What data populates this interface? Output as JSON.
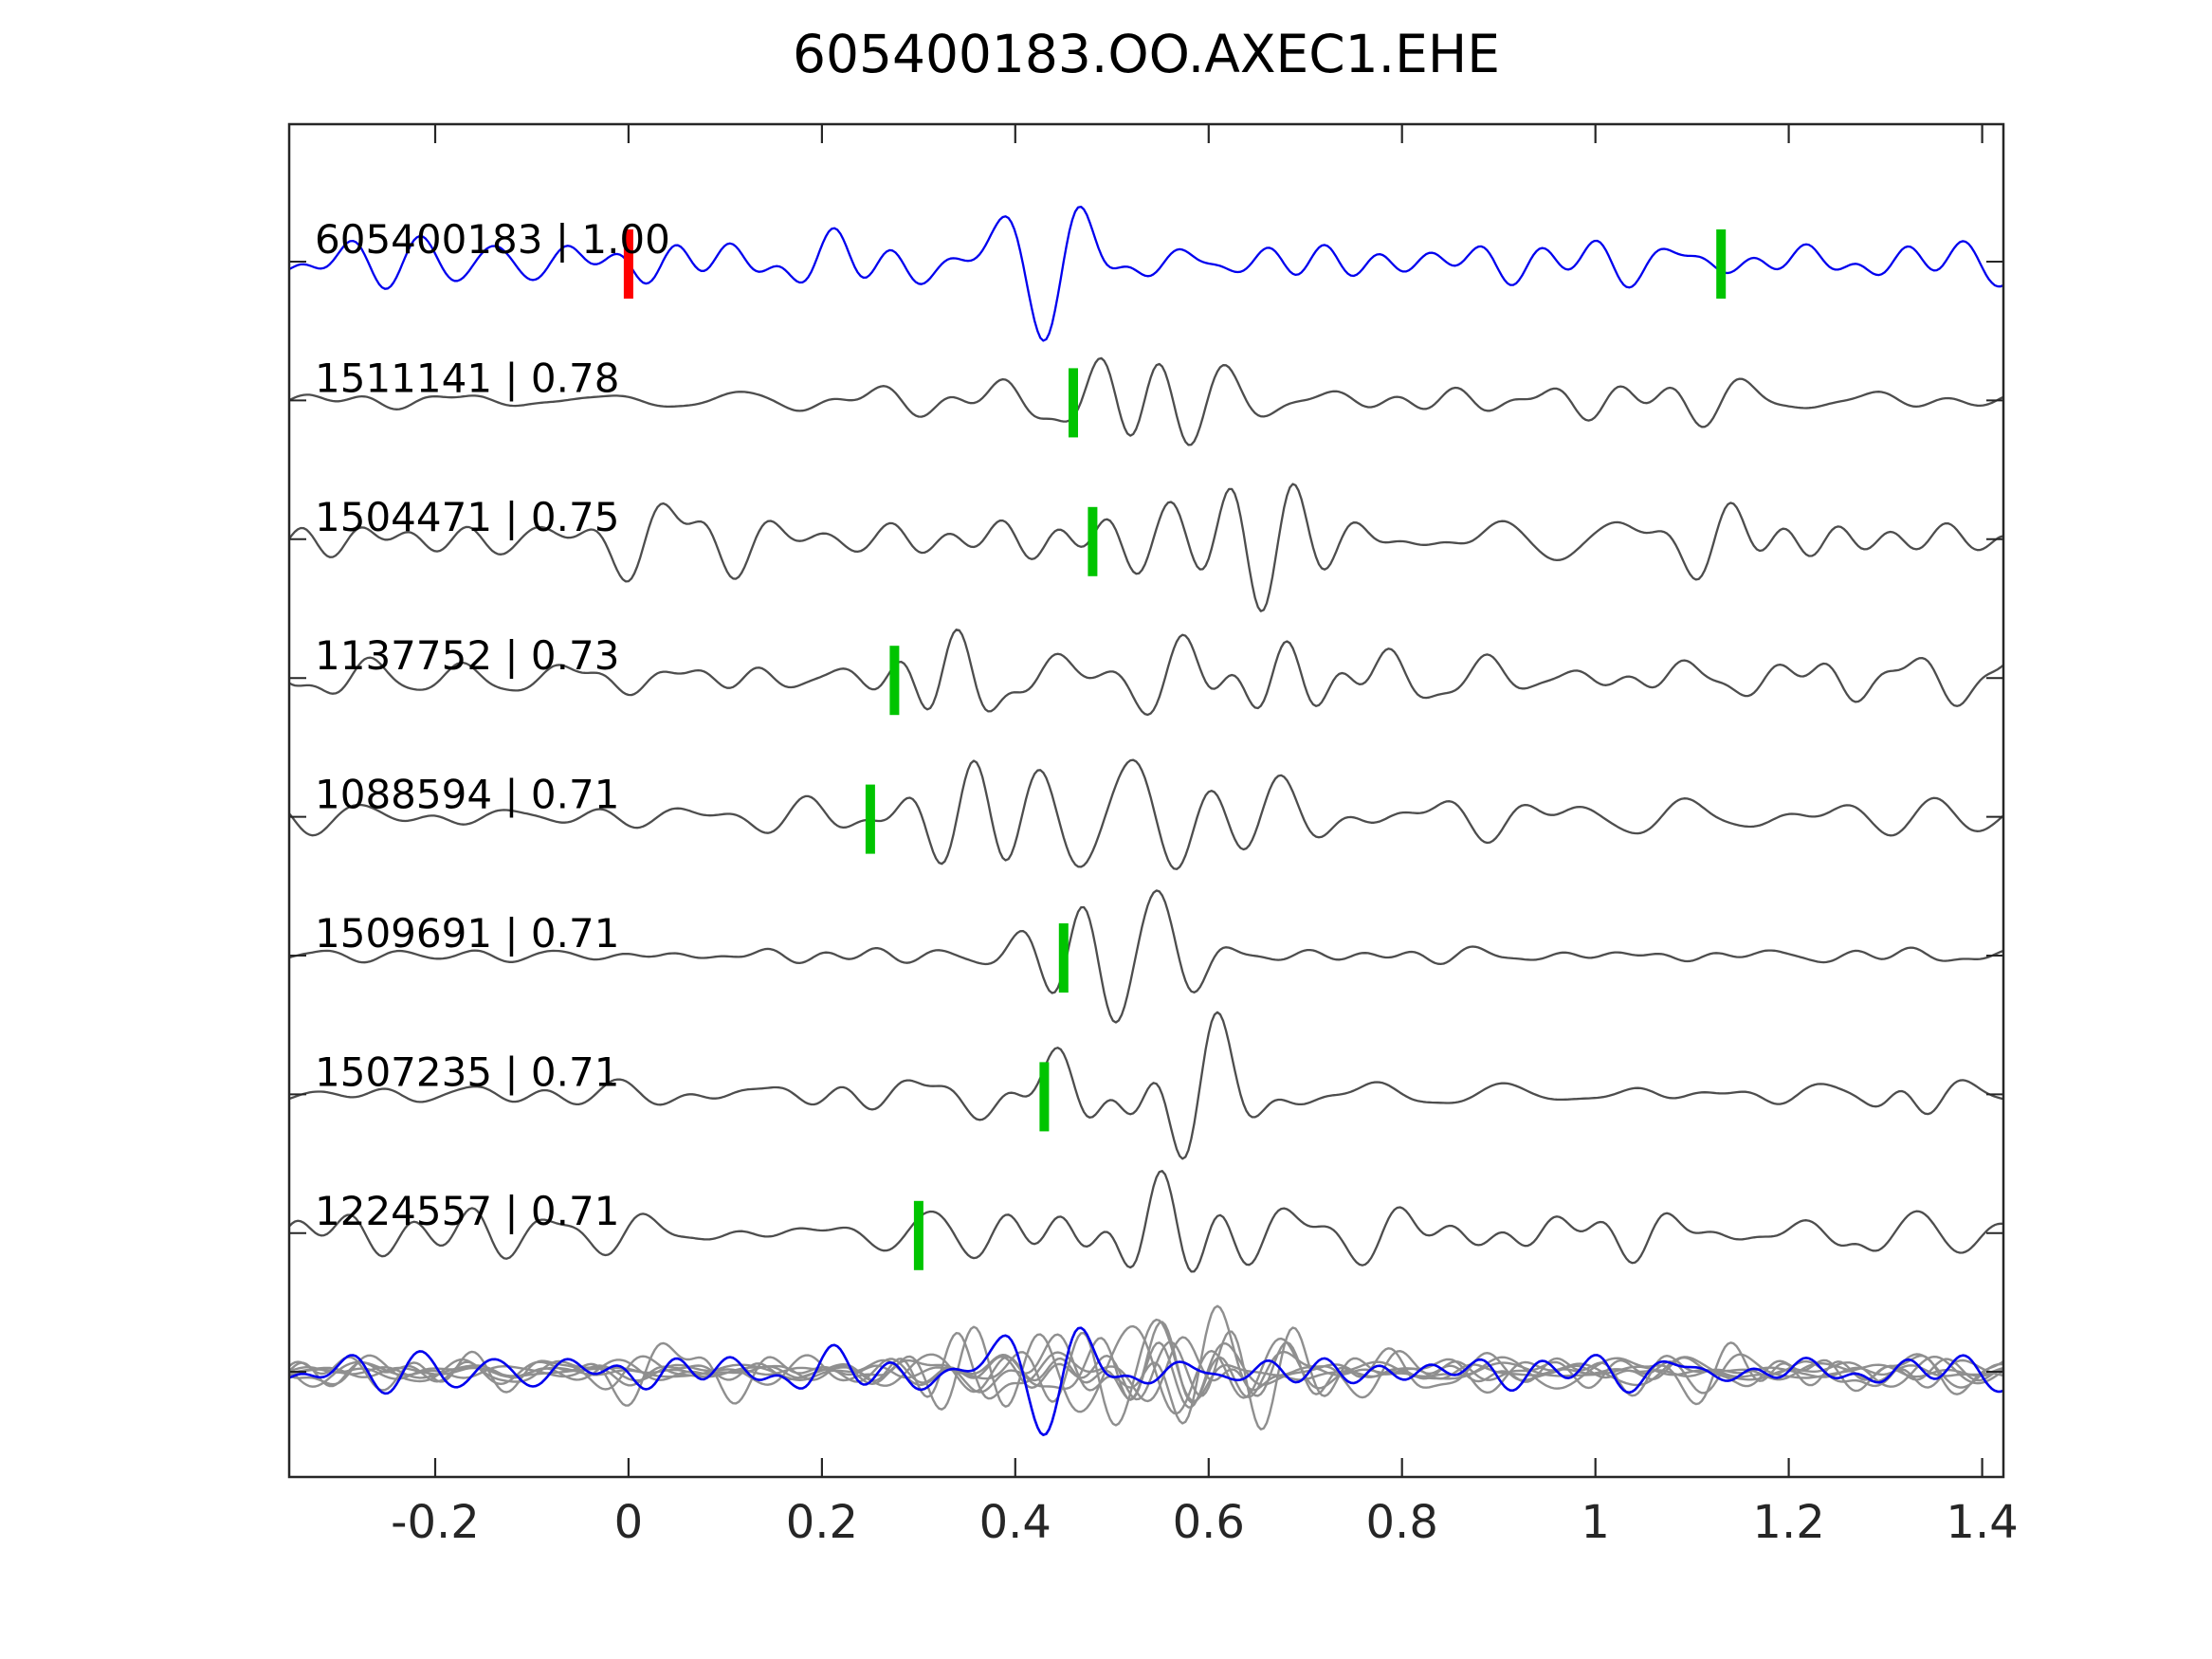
{
  "colors": {
    "template_blue": "#0000ee",
    "detection_gray": "#4d4d4d",
    "overlay_gray": "#8f8f8f",
    "pick_green": "#00c400",
    "pick_red": "#ff0000",
    "axis": "#262626",
    "text": "#000000",
    "background": "#ffffff"
  },
  "chart_data": {
    "type": "line",
    "title": "605400183.OO.AXEC1.EHE",
    "description": "Stacked seismic waveform traces: template event and correlated detections, each labeled 'event_id | correlation'. Green/red vertical bars mark pick times. Bottom row overlays all traces (gray) with the template (blue).",
    "x_axis": {
      "xlim": [
        -0.351,
        1.422
      ],
      "ticks": [
        -0.2,
        0,
        0.2,
        0.4,
        0.6,
        0.8,
        1,
        1.2,
        1.4
      ],
      "tick_labels": [
        "-0.2",
        "0",
        "0.2",
        "0.4",
        "0.6",
        "0.8",
        "1",
        "1.2",
        "1.4"
      ],
      "ticks_mirrored_top": true
    },
    "legend": null,
    "grid": false,
    "traces": [
      {
        "id": "605400183",
        "correlation": 1.0,
        "label": "605400183 | 1.00",
        "kind": "template",
        "picks": [
          {
            "time": 0.0,
            "color": "pick_red"
          },
          {
            "time": 1.13,
            "color": "pick_green"
          }
        ],
        "synth": {
          "seed": 11,
          "noise": 12,
          "events": [
            {
              "c": 0.47,
              "w": 0.18,
              "a": 17
            },
            {
              "c": 1.02,
              "w": 0.35,
              "a": 5
            }
          ]
        }
      },
      {
        "id": "1511141",
        "correlation": 0.78,
        "label": "1511141 | 0.78",
        "kind": "detection",
        "picks": [
          {
            "time": 0.46,
            "color": "pick_green"
          }
        ],
        "synth": {
          "seed": 22,
          "noise": 5,
          "events": [
            {
              "c": 0.5,
              "w": 0.1,
              "a": 30
            },
            {
              "c": 0.88,
              "w": 0.4,
              "a": 9
            }
          ]
        }
      },
      {
        "id": "1504471",
        "correlation": 0.75,
        "label": "1504471 | 0.75",
        "kind": "detection",
        "picks": [
          {
            "time": 0.48,
            "color": "pick_green"
          }
        ],
        "synth": {
          "seed": 33,
          "noise": 8,
          "events": [
            {
              "c": 0.06,
              "w": 0.1,
              "a": 10
            },
            {
              "c": 0.57,
              "w": 0.12,
              "a": 32
            },
            {
              "c": 1.05,
              "w": 0.35,
              "a": 7
            }
          ]
        }
      },
      {
        "id": "1137752",
        "correlation": 0.73,
        "label": "1137752 | 0.73",
        "kind": "detection",
        "picks": [
          {
            "time": 0.275,
            "color": "pick_green"
          }
        ],
        "synth": {
          "seed": 44,
          "noise": 10,
          "events": [
            {
              "c": 0.37,
              "w": 0.09,
              "a": 30
            },
            {
              "c": 0.63,
              "w": 0.18,
              "a": 10
            }
          ]
        }
      },
      {
        "id": "1088594",
        "correlation": 0.71,
        "label": "1088594 | 0.71",
        "kind": "detection",
        "picks": [
          {
            "time": 0.25,
            "color": "pick_green"
          }
        ],
        "synth": {
          "seed": 55,
          "noise": 11,
          "events": [
            {
              "c": 0.33,
              "w": 0.1,
              "a": 26
            },
            {
              "c": 0.58,
              "w": 0.12,
              "a": 16
            }
          ]
        }
      },
      {
        "id": "1509691",
        "correlation": 0.71,
        "label": "1509691 | 0.71",
        "kind": "detection",
        "picks": [
          {
            "time": 0.45,
            "color": "pick_green"
          }
        ],
        "synth": {
          "seed": 66,
          "noise": 4,
          "events": [
            {
              "c": 0.53,
              "w": 0.1,
              "a": 36
            }
          ]
        }
      },
      {
        "id": "1507235",
        "correlation": 0.71,
        "label": "1507235 | 0.71",
        "kind": "detection",
        "picks": [
          {
            "time": 0.43,
            "color": "pick_green"
          }
        ],
        "synth": {
          "seed": 77,
          "noise": 7,
          "events": [
            {
              "c": 0.53,
              "w": 0.12,
              "a": 32
            },
            {
              "c": 1.31,
              "w": 0.05,
              "a": 20
            }
          ]
        }
      },
      {
        "id": "1224557",
        "correlation": 0.71,
        "label": "1224557 | 0.71",
        "kind": "detection",
        "picks": [
          {
            "time": 0.3,
            "color": "pick_green"
          }
        ],
        "synth": {
          "seed": 88,
          "noise": 13,
          "events": [
            {
              "c": 0.5,
              "w": 0.12,
              "a": 22
            },
            {
              "c": 1.27,
              "w": 0.03,
              "a": 14
            }
          ]
        }
      }
    ],
    "overlay_row": {
      "description": "all traces superimposed, gray, with template in blue on top",
      "amplitude_scale": 0.8
    }
  }
}
